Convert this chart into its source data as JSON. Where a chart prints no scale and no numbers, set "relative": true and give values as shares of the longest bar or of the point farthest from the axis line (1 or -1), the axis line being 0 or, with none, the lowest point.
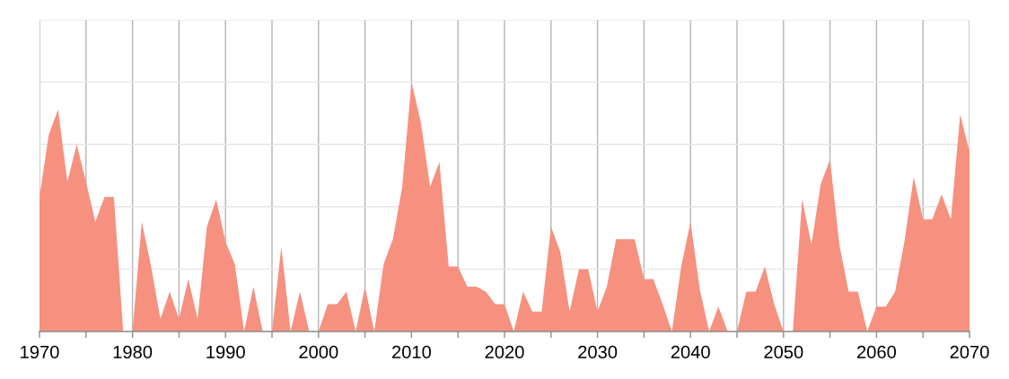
{
  "chart_data": {
    "type": "area",
    "relative": true,
    "grid": true,
    "x": [
      1970,
      1971,
      1972,
      1973,
      1974,
      1975,
      1976,
      1977,
      1978,
      1979,
      1980,
      1981,
      1982,
      1983,
      1984,
      1985,
      1986,
      1987,
      1988,
      1989,
      1990,
      1991,
      1992,
      1993,
      1994,
      1995,
      1996,
      1997,
      1998,
      1999,
      2000,
      2001,
      2002,
      2003,
      2004,
      2005,
      2006,
      2007,
      2008,
      2009,
      2010,
      2011,
      2012,
      2013,
      2014,
      2015,
      2016,
      2017,
      2018,
      2019,
      2020,
      2021,
      2022,
      2023,
      2024,
      2025,
      2026,
      2027,
      2028,
      2029,
      2030,
      2031,
      2032,
      2033,
      2034,
      2035,
      2036,
      2037,
      2038,
      2039,
      2040,
      2041,
      2042,
      2043,
      2044,
      2045,
      2046,
      2047,
      2048,
      2049,
      2050,
      2051,
      2052,
      2053,
      2054,
      2055,
      2056,
      2057,
      2058,
      2059,
      2060,
      2061,
      2062,
      2063,
      2064,
      2065,
      2066,
      2067,
      2068,
      2069,
      2070
    ],
    "series": [
      {
        "color": "#f6907f",
        "values": [
          0.54,
          0.79,
          0.89,
          0.6,
          0.75,
          0.6,
          0.44,
          0.54,
          0.54,
          0,
          0,
          0.44,
          0.26,
          0.05,
          0.16,
          0.05,
          0.21,
          0.05,
          0.42,
          0.53,
          0.36,
          0.27,
          0,
          0.18,
          0,
          0,
          0.34,
          0,
          0.16,
          0,
          0,
          0.11,
          0.11,
          0.16,
          0,
          0.18,
          0,
          0.27,
          0.37,
          0.58,
          1,
          0.84,
          0.58,
          0.68,
          0.26,
          0.26,
          0.18,
          0.18,
          0.16,
          0.11,
          0.11,
          0,
          0.16,
          0.08,
          0.08,
          0.42,
          0.32,
          0.08,
          0.25,
          0.25,
          0.08,
          0.18,
          0.37,
          0.37,
          0.37,
          0.21,
          0.21,
          0.11,
          0,
          0.26,
          0.44,
          0.17,
          0,
          0.1,
          0,
          0,
          0.16,
          0.16,
          0.26,
          0.11,
          0,
          0,
          0.53,
          0.35,
          0.59,
          0.69,
          0.35,
          0.16,
          0.16,
          0,
          0.1,
          0.1,
          0.16,
          0.36,
          0.62,
          0.45,
          0.45,
          0.55,
          0.45,
          0.87,
          0.72
        ]
      }
    ],
    "xlim": [
      1970,
      2070
    ],
    "xticks": [
      1970,
      {
        "value": 1975,
        "label": null
      },
      1980,
      {
        "value": 1985,
        "label": null
      },
      1990,
      {
        "value": 1995,
        "label": null
      },
      2000,
      {
        "value": 2005,
        "label": null
      },
      2010,
      {
        "value": 2015,
        "label": null
      },
      2020,
      {
        "value": 2025,
        "label": null
      },
      2030,
      {
        "value": 2035,
        "label": null
      },
      2040,
      {
        "value": 2045,
        "label": null
      },
      2050,
      {
        "value": 2055,
        "label": null
      },
      2060,
      {
        "value": 2065,
        "label": null
      },
      2070
    ]
  }
}
